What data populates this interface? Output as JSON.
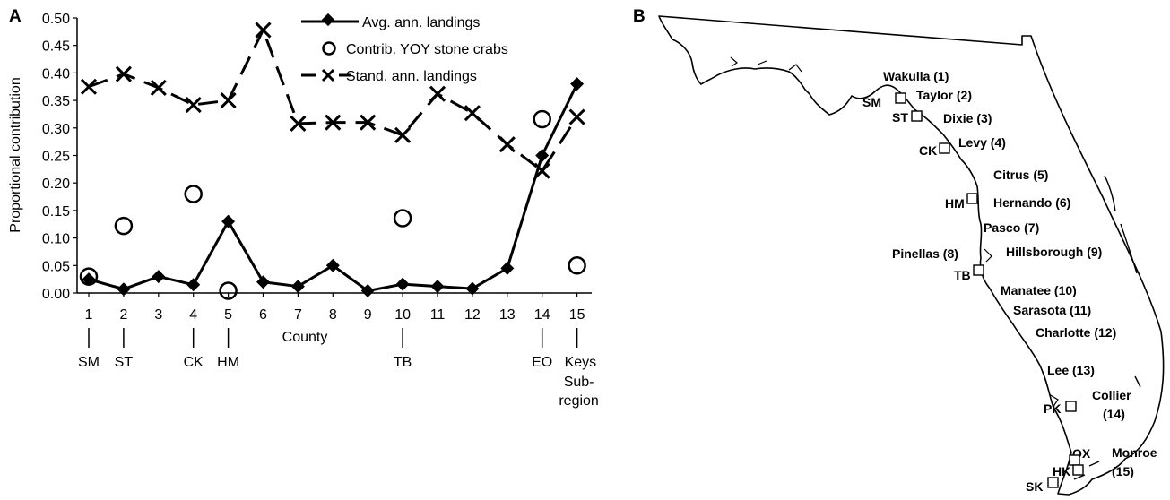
{
  "panels": {
    "a_label": "A",
    "b_label": "B"
  },
  "chart_data": {
    "type": "line",
    "xlabel": "County",
    "ylabel": "Proportional contribution",
    "ylim": [
      0,
      0.5
    ],
    "yticks": [
      "0.00",
      "0.05",
      "0.10",
      "0.15",
      "0.20",
      "0.25",
      "0.30",
      "0.35",
      "0.40",
      "0.45",
      "0.50"
    ],
    "categories": [
      "1",
      "2",
      "3",
      "4",
      "5",
      "6",
      "7",
      "8",
      "9",
      "10",
      "11",
      "12",
      "13",
      "14",
      "15"
    ],
    "subregions": [
      {
        "x": 1,
        "label": "SM"
      },
      {
        "x": 2,
        "label": "ST"
      },
      {
        "x": 4,
        "label": "CK"
      },
      {
        "x": 5,
        "label": "HM"
      },
      {
        "x": 10,
        "label": "TB"
      },
      {
        "x": 14,
        "label": "EO"
      },
      {
        "x": 15,
        "label": "Keys"
      }
    ],
    "subregion_axis_title": [
      "Sub-",
      "region"
    ],
    "series": [
      {
        "name": "Avg. ann. landings",
        "style": "solid-diamond",
        "color": "#000000",
        "values": [
          0.025,
          0.007,
          0.03,
          0.015,
          0.13,
          0.02,
          0.012,
          0.05,
          0.004,
          0.016,
          0.012,
          0.008,
          0.045,
          0.25,
          0.38
        ]
      },
      {
        "name": "Contrib. YOY stone crabs",
        "style": "open-circle",
        "color": "#000000",
        "points": [
          {
            "x": 1,
            "y": 0.03
          },
          {
            "x": 2,
            "y": 0.122
          },
          {
            "x": 4,
            "y": 0.18
          },
          {
            "x": 5,
            "y": 0.004
          },
          {
            "x": 10,
            "y": 0.136
          },
          {
            "x": 14,
            "y": 0.316
          },
          {
            "x": 15,
            "y": 0.05
          }
        ]
      },
      {
        "name": "Stand. ann. landings",
        "style": "dashed-x",
        "color": "#000000",
        "values": [
          0.375,
          0.398,
          0.373,
          0.342,
          0.35,
          0.478,
          0.308,
          0.31,
          0.31,
          0.287,
          0.362,
          0.327,
          0.27,
          0.222,
          0.32
        ]
      }
    ],
    "legend_position": "top-right"
  },
  "map": {
    "counties": [
      {
        "name": "Wakulla (1)"
      },
      {
        "name": "Taylor (2)"
      },
      {
        "name": "Dixie (3)"
      },
      {
        "name": "Levy (4)"
      },
      {
        "name": "Citrus (5)"
      },
      {
        "name": "Hernando (6)"
      },
      {
        "name": "Pasco (7)"
      },
      {
        "name": "Pinellas (8)"
      },
      {
        "name": "Hillsborough (9)"
      },
      {
        "name": "Manatee (10)"
      },
      {
        "name": "Sarasota (11)"
      },
      {
        "name": "Charlotte (12)"
      },
      {
        "name": "Lee (13)"
      },
      {
        "name": "Collier"
      },
      {
        "name": "(14)"
      },
      {
        "name": "Monroe"
      },
      {
        "name": "(15)"
      }
    ],
    "sites": [
      {
        "code": "SM"
      },
      {
        "code": "ST"
      },
      {
        "code": "CK"
      },
      {
        "code": "HM"
      },
      {
        "code": "TB"
      },
      {
        "code": "PK"
      },
      {
        "code": "OX"
      },
      {
        "code": "HK"
      },
      {
        "code": "SK"
      }
    ]
  }
}
